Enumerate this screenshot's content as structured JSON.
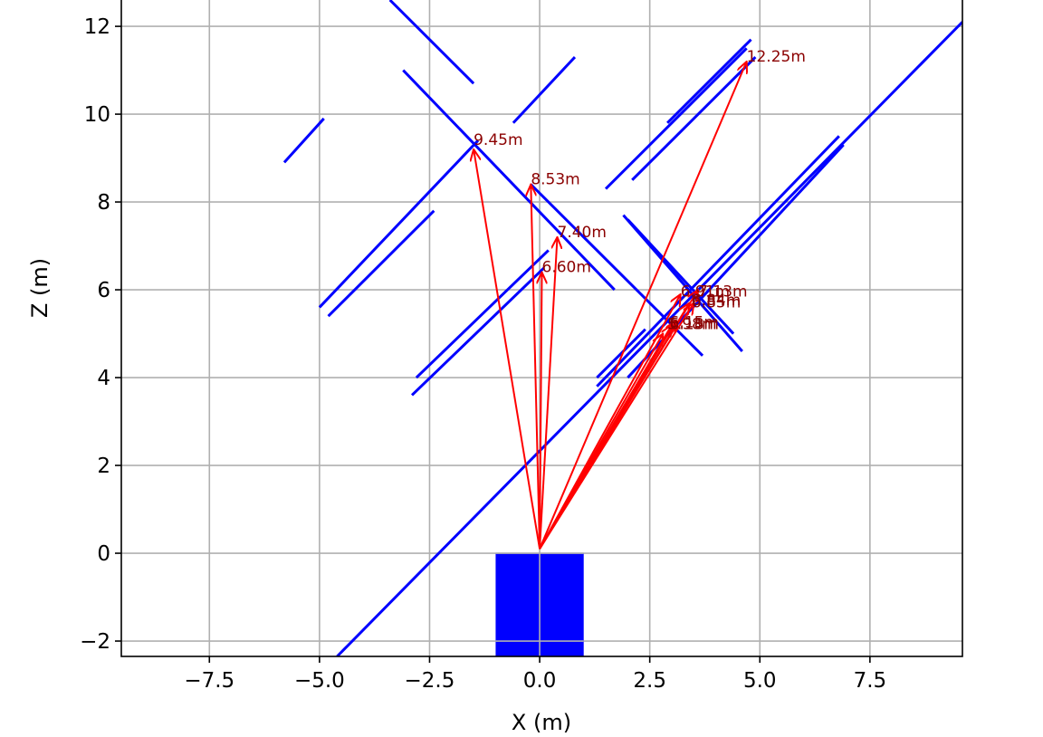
{
  "chart_data": {
    "type": "line",
    "xlabel": "X (m)",
    "ylabel": "Z (m)",
    "xlim": [
      -9.5,
      9.6
    ],
    "ylim": [
      -2.35,
      12.6
    ],
    "grid": true,
    "xticks": [
      -7.5,
      -5.0,
      -2.5,
      0.0,
      2.5,
      5.0,
      7.5
    ],
    "xtick_labels": [
      "−7.5",
      "−5.0",
      "−2.5",
      "0.0",
      "2.5",
      "5.0",
      "7.5"
    ],
    "yticks": [
      -2,
      0,
      2,
      4,
      6,
      8,
      10,
      12
    ],
    "ytick_labels": [
      "−2",
      "0",
      "2",
      "4",
      "6",
      "8",
      "10",
      "12"
    ],
    "colors": {
      "walls": "#0000ff",
      "rays": "#ff0000",
      "labels": "#8b0000",
      "grid": "#b0b0b0",
      "vehicle": "#0000ff"
    },
    "vehicle": {
      "x": [
        -1.0,
        1.0
      ],
      "z": [
        -2.35,
        0.0
      ]
    },
    "origin": [
      0.0,
      0.1
    ],
    "segments": [
      {
        "x": [
          -3.4,
          -1.5
        ],
        "z": [
          12.6,
          10.7
        ]
      },
      {
        "x": [
          -5.8,
          -4.9
        ],
        "z": [
          8.9,
          9.9
        ]
      },
      {
        "x": [
          -5.0,
          -1.4
        ],
        "z": [
          5.6,
          9.4
        ]
      },
      {
        "x": [
          -4.8,
          -2.4
        ],
        "z": [
          5.4,
          7.8
        ]
      },
      {
        "x": [
          -3.1,
          1.7
        ],
        "z": [
          11.0,
          6.0
        ]
      },
      {
        "x": [
          -0.6,
          0.8
        ],
        "z": [
          9.8,
          11.3
        ]
      },
      {
        "x": [
          -0.2,
          3.7
        ],
        "z": [
          8.4,
          4.5
        ]
      },
      {
        "x": [
          -2.8,
          0.2
        ],
        "z": [
          4.0,
          6.9
        ]
      },
      {
        "x": [
          -2.9,
          0.1
        ],
        "z": [
          3.6,
          6.5
        ]
      },
      {
        "x": [
          1.5,
          4.7
        ],
        "z": [
          8.3,
          11.5
        ]
      },
      {
        "x": [
          2.1,
          4.9
        ],
        "z": [
          8.5,
          11.3
        ]
      },
      {
        "x": [
          2.9,
          4.8
        ],
        "z": [
          9.8,
          11.7
        ]
      },
      {
        "x": [
          1.9,
          4.6
        ],
        "z": [
          7.7,
          4.6
        ]
      },
      {
        "x": [
          2.0,
          4.4
        ],
        "z": [
          7.6,
          5.0
        ]
      },
      {
        "x": [
          1.3,
          2.4
        ],
        "z": [
          4.0,
          5.1
        ]
      },
      {
        "x": [
          1.3,
          6.8
        ],
        "z": [
          3.8,
          9.5
        ]
      },
      {
        "x": [
          2.0,
          6.9
        ],
        "z": [
          4.0,
          9.3
        ]
      },
      {
        "x": [
          -4.6,
          9.6
        ],
        "z": [
          -2.35,
          12.1
        ]
      }
    ],
    "rays": [
      {
        "end": [
          -1.5,
          9.2
        ],
        "label": "9.45m",
        "label_at": [
          -1.5,
          9.3
        ]
      },
      {
        "end": [
          -0.2,
          8.4
        ],
        "label": "8.53m",
        "label_at": [
          -0.2,
          8.4
        ]
      },
      {
        "end": [
          0.4,
          7.2
        ],
        "label": "7.40m",
        "label_at": [
          0.4,
          7.2
        ]
      },
      {
        "end": [
          0.05,
          6.4
        ],
        "label": "6.60m",
        "label_at": [
          0.05,
          6.4
        ]
      },
      {
        "end": [
          4.7,
          11.2
        ],
        "label": "12.25m",
        "label_at": [
          4.7,
          11.2
        ]
      },
      {
        "end": [
          3.2,
          5.9
        ],
        "label": "6.91m",
        "label_at": [
          3.2,
          5.85
        ]
      },
      {
        "end": [
          3.6,
          6.0
        ],
        "label": "7.13m",
        "label_at": [
          3.6,
          5.85
        ]
      },
      {
        "end": [
          3.5,
          5.7
        ],
        "label": "6.84m",
        "label_at": [
          3.45,
          5.65
        ]
      },
      {
        "end": [
          3.4,
          5.7
        ],
        "label": "6.85m",
        "label_at": [
          3.45,
          5.6
        ]
      },
      {
        "end": [
          3.1,
          5.3
        ],
        "label": "6.15m",
        "label_at": [
          2.95,
          5.15
        ]
      },
      {
        "end": [
          3.0,
          5.2
        ],
        "label": "6.18m",
        "label_at": [
          2.95,
          5.1
        ]
      },
      {
        "end": [
          2.8,
          5.0
        ],
        "label": "5.98m",
        "label_at": [
          2.9,
          5.1
        ]
      }
    ]
  }
}
